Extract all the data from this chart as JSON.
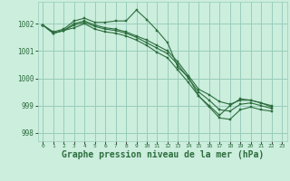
{
  "background_color": "#cceedd",
  "grid_color": "#99ccbb",
  "line_color": "#2d6e3e",
  "marker_color": "#2d6e3e",
  "xlabel": "Graphe pression niveau de la mer (hPa)",
  "xlabel_fontsize": 7,
  "xlim": [
    -0.5,
    23.5
  ],
  "ylim": [
    997.7,
    1002.8
  ],
  "yticks": [
    998,
    999,
    1000,
    1001,
    1002
  ],
  "xticks": [
    0,
    1,
    2,
    3,
    4,
    5,
    6,
    7,
    8,
    9,
    10,
    11,
    12,
    13,
    14,
    15,
    16,
    17,
    18,
    19,
    20,
    21,
    22,
    23
  ],
  "series": [
    [
      1001.95,
      1001.7,
      1001.8,
      1002.1,
      1002.2,
      1002.05,
      1002.05,
      1002.1,
      1002.1,
      1002.5,
      1002.15,
      1001.75,
      1001.3,
      1000.4,
      1000.05,
      999.35,
      999.0,
      998.65,
      999.0,
      999.25,
      999.2,
      999.1,
      998.95,
      null
    ],
    [
      1001.95,
      1001.65,
      1001.75,
      1002.0,
      1002.1,
      1001.95,
      1001.85,
      1001.8,
      1001.7,
      1001.55,
      1001.4,
      1001.2,
      1001.0,
      1000.6,
      1000.1,
      999.6,
      999.4,
      999.15,
      999.05,
      999.2,
      999.2,
      999.1,
      999.0,
      null
    ],
    [
      1001.95,
      1001.65,
      1001.75,
      1001.95,
      1002.05,
      1001.9,
      1001.8,
      1001.75,
      1001.65,
      1001.5,
      1001.3,
      1001.1,
      1000.9,
      1000.5,
      1000.0,
      999.5,
      999.2,
      998.85,
      998.8,
      999.05,
      999.1,
      999.0,
      998.9,
      null
    ],
    [
      1001.95,
      1001.65,
      1001.75,
      1001.85,
      1002.0,
      1001.8,
      1001.7,
      1001.65,
      1001.55,
      1001.4,
      1001.2,
      1000.95,
      1000.75,
      1000.3,
      999.85,
      999.35,
      998.95,
      998.55,
      998.5,
      998.85,
      998.95,
      998.85,
      998.8,
      null
    ]
  ]
}
